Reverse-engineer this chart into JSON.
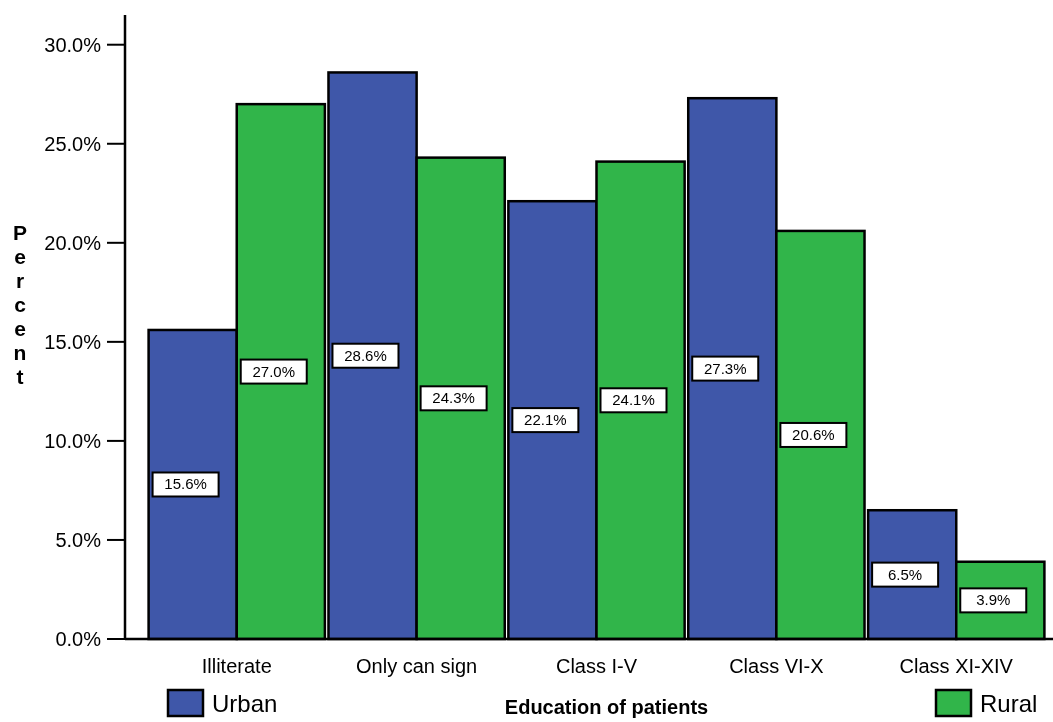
{
  "chart_data": {
    "type": "bar",
    "xlabel": "Education of patients",
    "ylabel": "Percent",
    "categories": [
      "Illiterate",
      "Only can sign",
      "Class I-V",
      "Class VI-X",
      "Class XI-XIV"
    ],
    "series": [
      {
        "name": "Urban",
        "color": "#3f57a9",
        "values": [
          15.6,
          28.6,
          22.1,
          27.3,
          6.5
        ],
        "value_labels": [
          "15.6%",
          "28.6%",
          "22.1%",
          "27.3%",
          "6.5%"
        ]
      },
      {
        "name": "Rural",
        "color": "#31b54a",
        "values": [
          27.0,
          24.3,
          24.1,
          20.6,
          3.9
        ],
        "value_labels": [
          "27.0%",
          "24.3%",
          "24.1%",
          "20.6%",
          "3.9%"
        ]
      }
    ],
    "ylim": [
      0,
      31.5
    ],
    "yticks": [
      {
        "value": 0,
        "label": "0.0%"
      },
      {
        "value": 5,
        "label": "5.0%"
      },
      {
        "value": 10,
        "label": "10.0%"
      },
      {
        "value": 15,
        "label": "15.0%"
      },
      {
        "value": 20,
        "label": "20.0%"
      },
      {
        "value": 25,
        "label": "25.0%"
      },
      {
        "value": 30,
        "label": "30.0%"
      }
    ],
    "legend": "bottom",
    "grid": false
  }
}
